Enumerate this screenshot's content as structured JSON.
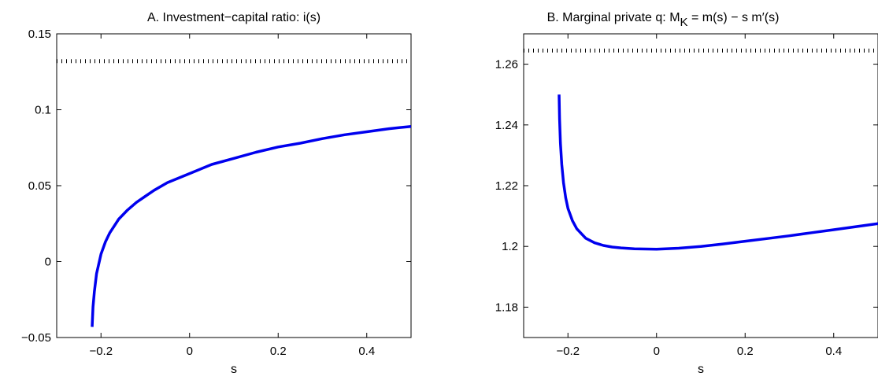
{
  "chart_data": [
    {
      "type": "line",
      "title": "A. Investment−capital ratio: i(s)",
      "xlabel": "s",
      "ylabel": "",
      "xlim": [
        -0.3,
        0.5
      ],
      "ylim": [
        -0.05,
        0.15
      ],
      "xticks": [
        -0.2,
        0,
        0.2,
        0.4
      ],
      "xtick_labels": [
        "−0.2",
        "0",
        "0.2",
        "0.4"
      ],
      "yticks": [
        -0.05,
        0,
        0.05,
        0.1,
        0.15
      ],
      "ytick_labels": [
        "−0.05",
        "0",
        "0.05",
        "0.1",
        "0.15"
      ],
      "grid": false,
      "series": [
        {
          "style": "solid",
          "color": "#0000ee",
          "x": [
            -0.22,
            -0.218,
            -0.215,
            -0.21,
            -0.2,
            -0.19,
            -0.18,
            -0.16,
            -0.14,
            -0.12,
            -0.1,
            -0.08,
            -0.05,
            0,
            0.05,
            0.1,
            0.15,
            0.2,
            0.25,
            0.3,
            0.35,
            0.4,
            0.45,
            0.5
          ],
          "y": [
            -0.043,
            -0.03,
            -0.02,
            -0.008,
            0.005,
            0.013,
            0.019,
            0.028,
            0.034,
            0.039,
            0.043,
            0.047,
            0.052,
            0.058,
            0.064,
            0.068,
            0.072,
            0.0755,
            0.078,
            0.081,
            0.0835,
            0.0855,
            0.0875,
            0.089
          ]
        },
        {
          "style": "dotted",
          "color": "#000000",
          "x": [
            -0.3,
            0.5
          ],
          "y": [
            0.132,
            0.132
          ]
        }
      ]
    },
    {
      "type": "line",
      "title": "B. Marginal private q: M",
      "title_sub": "K",
      "title_rest": " = m(s) − s m′(s)",
      "xlabel": "s",
      "ylabel": "",
      "xlim": [
        -0.3,
        0.5
      ],
      "ylim": [
        1.17,
        1.27
      ],
      "xticks": [
        -0.2,
        0,
        0.2,
        0.4
      ],
      "xtick_labels": [
        "−0.2",
        "0",
        "0.2",
        "0.4"
      ],
      "yticks": [
        1.18,
        1.2,
        1.22,
        1.24,
        1.26
      ],
      "ytick_labels": [
        "1.18",
        "1.2",
        "1.22",
        "1.24",
        "1.26"
      ],
      "grid": false,
      "series": [
        {
          "style": "solid",
          "color": "#0000ee",
          "x": [
            -0.22,
            -0.219,
            -0.217,
            -0.214,
            -0.21,
            -0.205,
            -0.2,
            -0.19,
            -0.18,
            -0.16,
            -0.14,
            -0.12,
            -0.1,
            -0.08,
            -0.05,
            0,
            0.05,
            0.1,
            0.15,
            0.2,
            0.25,
            0.3,
            0.35,
            0.4,
            0.45,
            0.5
          ],
          "y": [
            1.25,
            1.242,
            1.234,
            1.227,
            1.221,
            1.216,
            1.2125,
            1.2085,
            1.2058,
            1.2027,
            1.2012,
            1.2003,
            1.1998,
            1.1995,
            1.1992,
            1.1991,
            1.1994,
            1.2,
            1.2008,
            1.2017,
            1.2026,
            1.2035,
            1.2045,
            1.2055,
            1.2065,
            1.2075
          ]
        },
        {
          "style": "dotted",
          "color": "#000000",
          "x": [
            -0.3,
            0.5
          ],
          "y": [
            1.2645,
            1.2645
          ]
        }
      ]
    }
  ]
}
